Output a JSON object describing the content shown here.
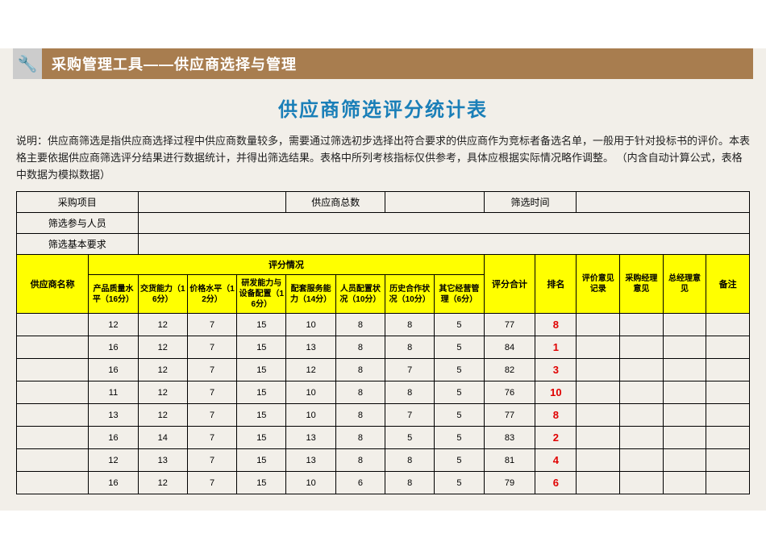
{
  "banner": {
    "icon_glyph": "🔧",
    "title": "采购管理工具——供应商选择与管理"
  },
  "page_title": "供应商筛选评分统计表",
  "description": "说明：供应商筛选是指供应商选择过程中供应商数量较多，需要通过筛选初步选择出符合要求的供应商作为竞标者备选名单，一般用于针对投标书的评价。本表格主要依据供应商筛选评分结果进行数据统计，并得出筛选结果。表格中所列考核指标仅供参考，具体应根据实际情况略作调整。 （内含自动计算公式，表格中数据为模拟数据）",
  "info_labels": {
    "purchase_project": "采购项目",
    "supplier_total": "供应商总数",
    "filter_time": "筛选时间",
    "participants": "筛选参与人员",
    "basic_req": "筛选基本要求"
  },
  "header": {
    "supplier_name": "供应商名称",
    "score_group": "评分情况",
    "criteria": [
      "产品质量水平（16分）",
      "交货能力（16分）",
      "价格水平（12分）",
      "研发能力与设备配置（16分）",
      "配套服务能力（14分）",
      "人员配置状况（10分）",
      "历史合作状况（10分）",
      "其它经营管理（6分）"
    ],
    "total": "评分合计",
    "rank": "排名",
    "eval_record": "评价意见记录",
    "pm_opinion": "采购经理意见",
    "gm_opinion": "总经理意见",
    "note": "备注"
  },
  "rows": [
    {
      "name": "",
      "scores": [
        12,
        12,
        7,
        15,
        10,
        8,
        8,
        5
      ],
      "total": 77,
      "rank": 8
    },
    {
      "name": "",
      "scores": [
        16,
        12,
        7,
        15,
        13,
        8,
        8,
        5
      ],
      "total": 84,
      "rank": 1
    },
    {
      "name": "",
      "scores": [
        16,
        12,
        7,
        15,
        12,
        8,
        7,
        5
      ],
      "total": 82,
      "rank": 3
    },
    {
      "name": "",
      "scores": [
        11,
        12,
        7,
        15,
        10,
        8,
        8,
        5
      ],
      "total": 76,
      "rank": 10
    },
    {
      "name": "",
      "scores": [
        13,
        12,
        7,
        15,
        10,
        8,
        7,
        5
      ],
      "total": 77,
      "rank": 8
    },
    {
      "name": "",
      "scores": [
        16,
        14,
        7,
        15,
        13,
        8,
        5,
        5
      ],
      "total": 83,
      "rank": 2
    },
    {
      "name": "",
      "scores": [
        12,
        13,
        7,
        15,
        13,
        8,
        8,
        5
      ],
      "total": 81,
      "rank": 4
    },
    {
      "name": "",
      "scores": [
        16,
        12,
        7,
        15,
        10,
        6,
        8,
        5
      ],
      "total": 79,
      "rank": 6
    }
  ],
  "colors": {
    "banner_bg": "#a87d4f",
    "banner_icon_bg": "#cccccc",
    "page_bg": "#f2efe9",
    "title_color": "#1a7fb8",
    "highlight": "#ffff00",
    "rank_color": "#e00000",
    "border": "#000000"
  }
}
